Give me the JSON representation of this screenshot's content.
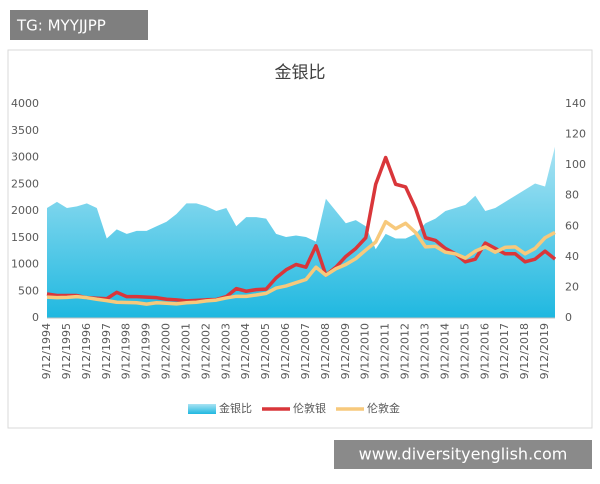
{
  "overlays": {
    "tag": "TG: MYYJJPP",
    "site": "www.diversityenglish.com"
  },
  "chart_data": {
    "type": "combo",
    "title": "金银比",
    "categories": [
      "9/12/1994",
      null,
      "9/12/1995",
      null,
      "9/12/1996",
      null,
      "9/12/1997",
      null,
      "9/12/1998",
      null,
      "9/12/1999",
      null,
      "9/12/2000",
      null,
      "9/12/2001",
      null,
      "9/12/2002",
      null,
      "9/12/2003",
      null,
      "9/12/2004",
      null,
      "9/12/2005",
      null,
      "9/12/2006",
      null,
      "9/12/2007",
      null,
      "9/12/2008",
      null,
      "9/12/2009",
      null,
      "9/12/2010",
      null,
      "9/12/2011",
      null,
      "9/12/2012",
      null,
      "9/12/2013",
      null,
      "9/12/2014",
      null,
      "9/12/2015",
      null,
      "9/12/2016",
      null,
      "9/12/2017",
      null,
      "9/12/2018",
      null,
      "9/12/2019",
      null
    ],
    "ylim": [
      0,
      4000
    ],
    "yticks": [
      0,
      500,
      1000,
      1500,
      2000,
      2500,
      3000,
      3500,
      4000
    ],
    "y2lim": [
      0,
      140
    ],
    "y2ticks": [
      0,
      20,
      40,
      60,
      80,
      100,
      120,
      140
    ],
    "legend": "bottom",
    "series": [
      {
        "name": "金银比",
        "type": "area",
        "axis": "y2",
        "color": "#3ec3e6",
        "values": [
          72,
          76,
          72,
          73,
          75,
          72,
          52,
          58,
          55,
          57,
          57,
          60,
          63,
          68,
          75,
          75,
          73,
          70,
          72,
          60,
          66,
          66,
          65,
          55,
          53,
          54,
          53,
          50,
          78,
          70,
          62,
          64,
          60,
          45,
          55,
          52,
          52,
          55,
          62,
          65,
          70,
          72,
          74,
          80,
          70,
          72,
          76,
          80,
          84,
          88,
          86,
          112
        ]
      },
      {
        "name": "伦敦银",
        "type": "line",
        "color": "#d9363a",
        "values": [
          450,
          420,
          420,
          420,
          380,
          370,
          360,
          480,
          400,
          400,
          390,
          380,
          350,
          340,
          320,
          330,
          340,
          345,
          400,
          550,
          500,
          530,
          540,
          750,
          900,
          1000,
          950,
          1350,
          800,
          950,
          1150,
          1300,
          1500,
          2500,
          3000,
          2500,
          2450,
          2050,
          1500,
          1450,
          1300,
          1200,
          1050,
          1100,
          1400,
          1300,
          1200,
          1200,
          1050,
          1100,
          1250,
          1100
        ]
      },
      {
        "name": "伦敦金",
        "type": "line",
        "color": "#f7c97c",
        "values": [
          390,
          380,
          385,
          400,
          380,
          350,
          325,
          295,
          290,
          285,
          260,
          285,
          275,
          265,
          285,
          295,
          320,
          335,
          375,
          405,
          405,
          430,
          460,
          560,
          600,
          660,
          720,
          950,
          800,
          920,
          1000,
          1110,
          1270,
          1420,
          1800,
          1670,
          1770,
          1600,
          1330,
          1340,
          1230,
          1200,
          1120,
          1250,
          1330,
          1230,
          1320,
          1330,
          1200,
          1300,
          1500,
          1600
        ]
      }
    ]
  }
}
